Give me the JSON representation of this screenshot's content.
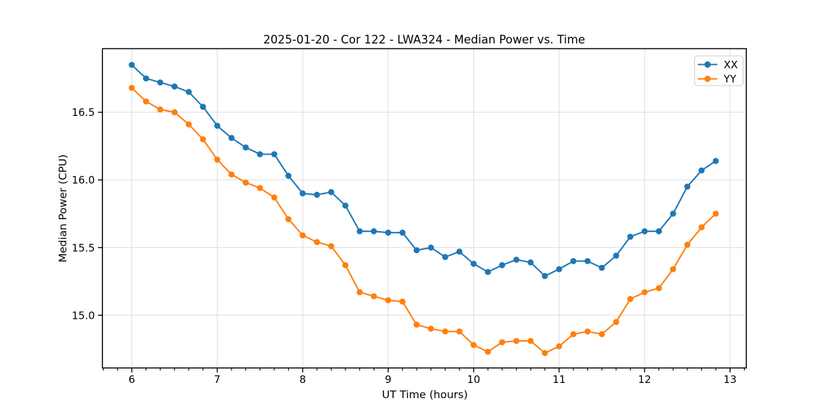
{
  "chart_data": {
    "type": "line",
    "title": "2025-01-20 - Cor 122 - LWA324 - Median Power vs. Time",
    "xlabel": "UT Time (hours)",
    "ylabel": "Median Power (CPU)",
    "xlim": [
      5.657,
      13.19
    ],
    "ylim": [
      14.61,
      16.97
    ],
    "x_ticks": [
      6,
      7,
      8,
      9,
      10,
      11,
      12,
      13
    ],
    "x_tick_labels": [
      "6",
      "7",
      "8",
      "9",
      "10",
      "11",
      "12",
      "13"
    ],
    "y_ticks": [
      15.0,
      15.5,
      16.0,
      16.5
    ],
    "y_tick_labels": [
      "15.0",
      "15.5",
      "16.0",
      "16.5"
    ],
    "x_minor_step": 0.16667,
    "grid": true,
    "grid_color": "#dcdcdc",
    "legend_position": "top-right",
    "x": [
      6.0,
      6.167,
      6.333,
      6.5,
      6.667,
      6.833,
      7.0,
      7.167,
      7.333,
      7.5,
      7.667,
      7.833,
      8.0,
      8.167,
      8.333,
      8.5,
      8.667,
      8.833,
      9.0,
      9.167,
      9.333,
      9.5,
      9.667,
      9.833,
      10.0,
      10.167,
      10.333,
      10.5,
      10.667,
      10.833,
      11.0,
      11.167,
      11.333,
      11.5,
      11.667,
      11.833,
      12.0,
      12.167,
      12.333,
      12.5,
      12.667,
      12.833
    ],
    "series": [
      {
        "name": "XX",
        "color": "#1f77b4",
        "values": [
          16.85,
          16.75,
          16.72,
          16.69,
          16.65,
          16.54,
          16.4,
          16.31,
          16.24,
          16.19,
          16.19,
          16.03,
          15.9,
          15.89,
          15.91,
          15.81,
          15.62,
          15.62,
          15.61,
          15.61,
          15.48,
          15.5,
          15.43,
          15.47,
          15.38,
          15.32,
          15.37,
          15.41,
          15.39,
          15.29,
          15.34,
          15.4,
          15.4,
          15.35,
          15.44,
          15.58,
          15.62,
          15.62,
          15.75,
          15.95,
          16.07,
          16.14
        ]
      },
      {
        "name": "YY",
        "color": "#ff7f0e",
        "values": [
          16.68,
          16.58,
          16.52,
          16.5,
          16.41,
          16.3,
          16.15,
          16.04,
          15.98,
          15.94,
          15.87,
          15.71,
          15.59,
          15.54,
          15.51,
          15.37,
          15.17,
          15.14,
          15.11,
          15.1,
          14.93,
          14.9,
          14.88,
          14.88,
          14.78,
          14.73,
          14.8,
          14.81,
          14.81,
          14.72,
          14.77,
          14.86,
          14.88,
          14.86,
          14.95,
          15.12,
          15.17,
          15.2,
          15.34,
          15.52,
          15.65,
          15.75
        ]
      }
    ]
  }
}
